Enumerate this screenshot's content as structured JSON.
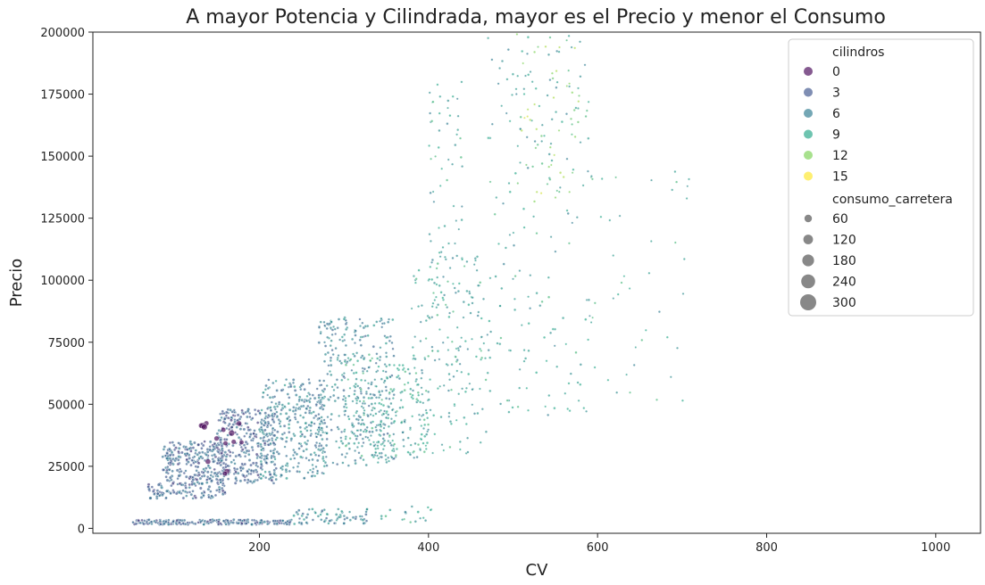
{
  "chart_data": {
    "type": "scatter",
    "title": "A mayor Potencia y Cilindrada, mayor es el Precio y menor el Consumo",
    "xlabel": "CV",
    "ylabel": "Precio",
    "xlim": [
      3,
      1053
    ],
    "ylim": [
      -2000,
      200000
    ],
    "xticks": [
      200,
      400,
      600,
      800,
      1000
    ],
    "xtick_labels": [
      "200",
      "400",
      "600",
      "800",
      "1000"
    ],
    "yticks": [
      0,
      25000,
      50000,
      75000,
      100000,
      125000,
      150000,
      175000,
      200000
    ],
    "ytick_labels": [
      "0",
      "25000",
      "50000",
      "75000",
      "100000",
      "125000",
      "150000",
      "175000",
      "200000"
    ],
    "grid": false,
    "hue_variable": "cilindros",
    "size_variable": "consumo_carretera",
    "legend": {
      "placement": "top-right",
      "hue_title": "cilindros",
      "hue_entries": [
        {
          "label": "0",
          "color": "#440154"
        },
        {
          "label": "3",
          "color": "#3b528b"
        },
        {
          "label": "6",
          "color": "#2a788e"
        },
        {
          "label": "9",
          "color": "#21a585"
        },
        {
          "label": "12",
          "color": "#7ad151"
        },
        {
          "label": "15",
          "color": "#fde725"
        }
      ],
      "size_title": "consumo_carretera",
      "size_entries": [
        {
          "label": "60",
          "value": 60
        },
        {
          "label": "120",
          "value": 120
        },
        {
          "label": "180",
          "value": 180
        },
        {
          "label": "240",
          "value": 240
        },
        {
          "label": "300",
          "value": 300
        }
      ]
    },
    "clusters": [
      {
        "x": [
          50,
          240
        ],
        "y": [
          1500,
          3500
        ],
        "n": 220,
        "cyl": 4,
        "size": 30
      },
      {
        "x": [
          240,
          330
        ],
        "y": [
          1500,
          8000
        ],
        "n": 70,
        "cyl": 6,
        "size": 28
      },
      {
        "x": [
          330,
          410
        ],
        "y": [
          2000,
          9000
        ],
        "n": 18,
        "cyl": 8,
        "size": 26
      },
      {
        "x": [
          68,
          85
        ],
        "y": [
          12000,
          18000
        ],
        "n": 25,
        "cyl": 4,
        "size": 35
      },
      {
        "x": [
          85,
          160
        ],
        "y": [
          12000,
          35000
        ],
        "n": 320,
        "cyl": 4,
        "size": 32
      },
      {
        "x": [
          150,
          220
        ],
        "y": [
          18000,
          48000
        ],
        "n": 320,
        "cyl": 4,
        "size": 30
      },
      {
        "x": [
          200,
          280
        ],
        "y": [
          20000,
          60000
        ],
        "n": 330,
        "cyl": 6,
        "size": 28
      },
      {
        "x": [
          270,
          360
        ],
        "y": [
          25000,
          85000
        ],
        "n": 330,
        "cyl": 6,
        "size": 26
      },
      {
        "x": [
          300,
          400
        ],
        "y": [
          28000,
          70000
        ],
        "n": 240,
        "cyl": 8,
        "size": 24
      },
      {
        "x": [
          380,
          470
        ],
        "y": [
          30000,
          110000
        ],
        "n": 170,
        "cyl": 8,
        "size": 22
      },
      {
        "x": [
          400,
          440
        ],
        "y": [
          70000,
          180000
        ],
        "n": 75,
        "cyl": 8,
        "size": 22
      },
      {
        "x": [
          470,
          590
        ],
        "y": [
          45000,
          200000
        ],
        "n": 180,
        "cyl": 8,
        "size": 22
      },
      {
        "x": [
          500,
          580
        ],
        "y": [
          130000,
          200000
        ],
        "n": 50,
        "cyl": 12,
        "size": 20
      },
      {
        "x": [
          590,
          710
        ],
        "y": [
          50000,
          150000
        ],
        "n": 45,
        "cyl": 8,
        "size": 20
      },
      {
        "x": [
          130,
          180
        ],
        "y": [
          20000,
          45000
        ],
        "n": 14,
        "cyl": 0,
        "size": 90
      }
    ]
  }
}
